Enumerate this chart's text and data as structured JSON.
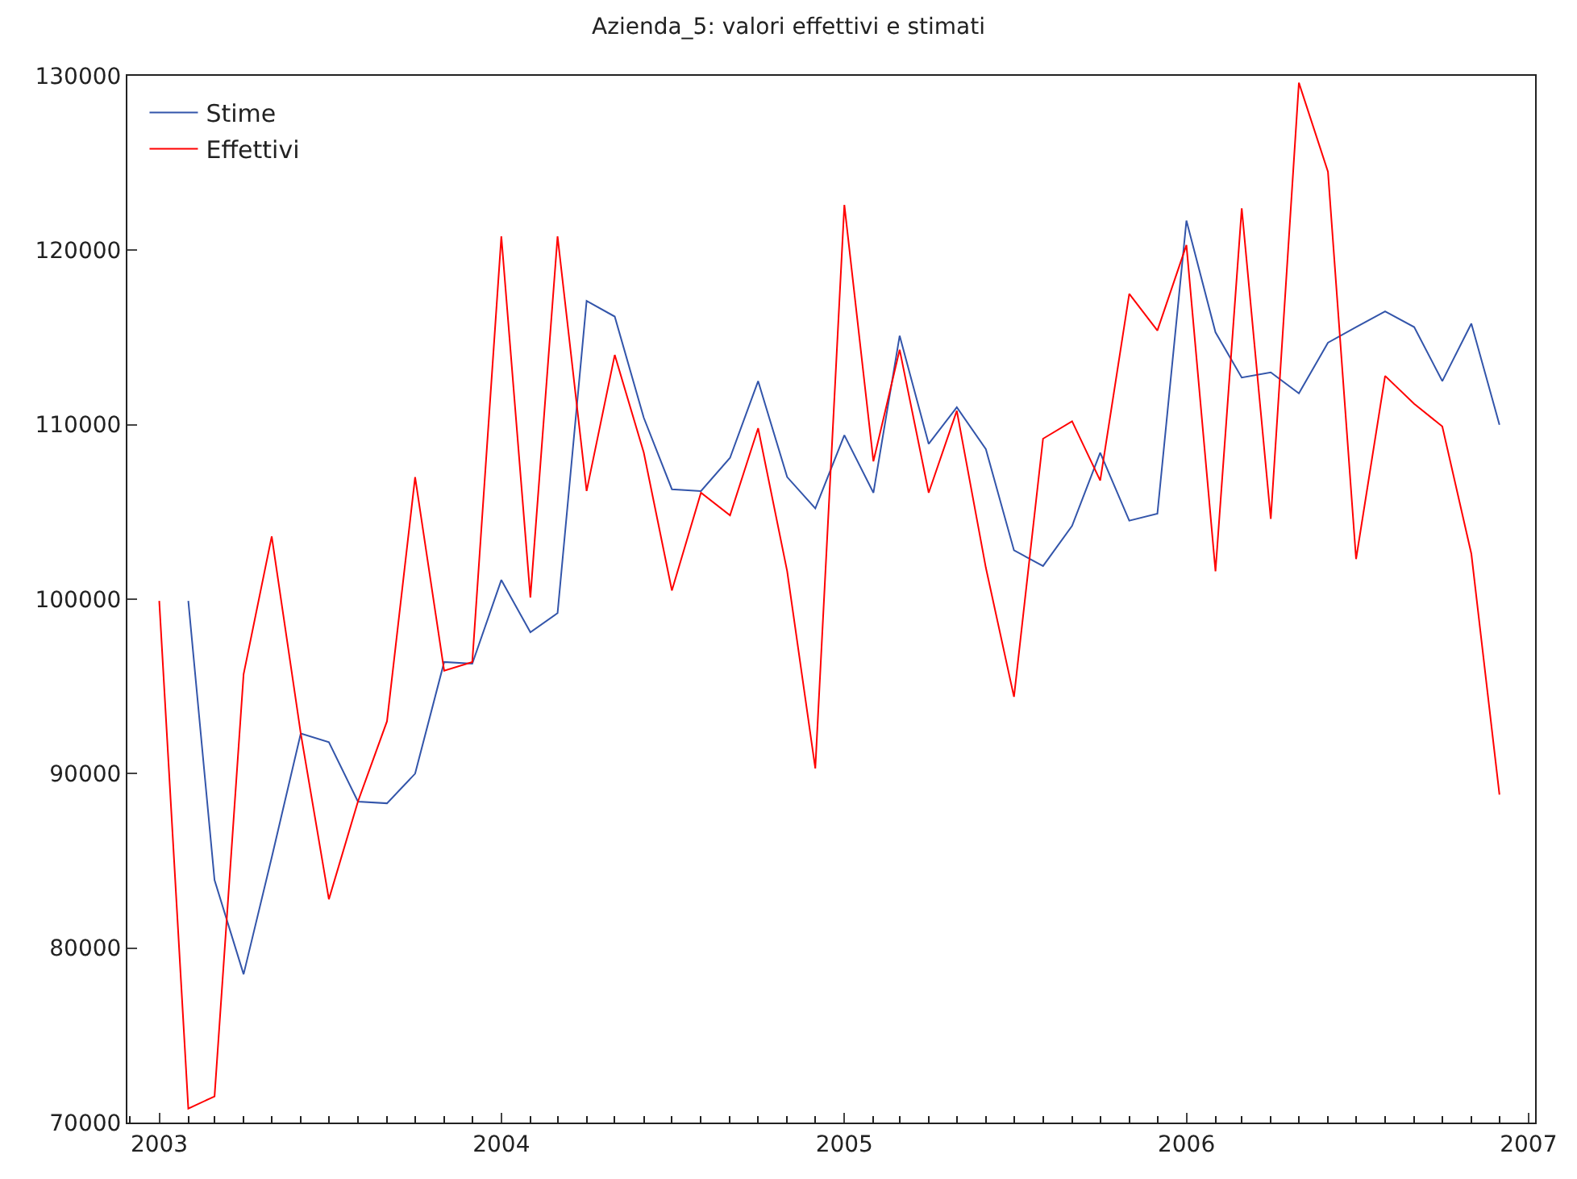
{
  "chart_data": {
    "type": "line",
    "title": "Azienda_5: valori effettivi e stimati",
    "x": [
      "2003-01",
      "2003-02",
      "2003-03",
      "2003-04",
      "2003-05",
      "2003-06",
      "2003-07",
      "2003-08",
      "2003-09",
      "2003-10",
      "2003-11",
      "2003-12",
      "2004-01",
      "2004-02",
      "2004-03",
      "2004-04",
      "2004-05",
      "2004-06",
      "2004-07",
      "2004-08",
      "2004-09",
      "2004-10",
      "2004-11",
      "2004-12",
      "2005-01",
      "2005-02",
      "2005-03",
      "2005-04",
      "2005-05",
      "2005-06",
      "2005-07",
      "2005-08",
      "2005-09",
      "2005-10",
      "2005-11",
      "2005-12",
      "2006-01",
      "2006-02",
      "2006-03",
      "2006-04",
      "2006-05",
      "2006-06",
      "2006-07",
      "2006-08",
      "2006-09",
      "2006-10",
      "2006-11",
      "2006-12"
    ],
    "series": [
      {
        "name": "Stime",
        "color": "#3355aa",
        "values": [
          null,
          99900,
          83900,
          78500,
          85200,
          92300,
          91800,
          88400,
          88300,
          90000,
          96400,
          96300,
          101100,
          98100,
          99200,
          117100,
          116200,
          110400,
          106300,
          106200,
          108100,
          112500,
          107000,
          105200,
          109400,
          106100,
          115100,
          108900,
          111000,
          108600,
          102800,
          101900,
          104200,
          108400,
          104500,
          104900,
          121700,
          115300,
          112700,
          113000,
          111800,
          114700,
          115600,
          116500,
          115600,
          112500,
          115800,
          110000
        ]
      },
      {
        "name": "Effettivi",
        "color": "#ff0000",
        "values": [
          99900,
          70800,
          71500,
          95700,
          103600,
          92300,
          82800,
          88400,
          93000,
          107000,
          95900,
          96400,
          120800,
          100100,
          120800,
          106200,
          114000,
          108400,
          100500,
          106100,
          104800,
          109800,
          101600,
          90300,
          122600,
          107900,
          114300,
          106100,
          110800,
          101800,
          94400,
          109200,
          110200,
          106800,
          117500,
          115400,
          120300,
          101600,
          122400,
          104600,
          129600,
          124500,
          102300,
          112800,
          111200,
          109900,
          102600,
          88800
        ]
      }
    ],
    "xlim": [
      "2002-11-28",
      "2007-01-08"
    ],
    "xticks": [
      "2003",
      "2004",
      "2005",
      "2006",
      "2007"
    ],
    "ylim": [
      70000,
      130000
    ],
    "yticks": [
      70000,
      80000,
      90000,
      100000,
      110000,
      120000,
      130000
    ],
    "grid": false,
    "legend": "top left",
    "marker": "none",
    "line_style": "solid"
  }
}
